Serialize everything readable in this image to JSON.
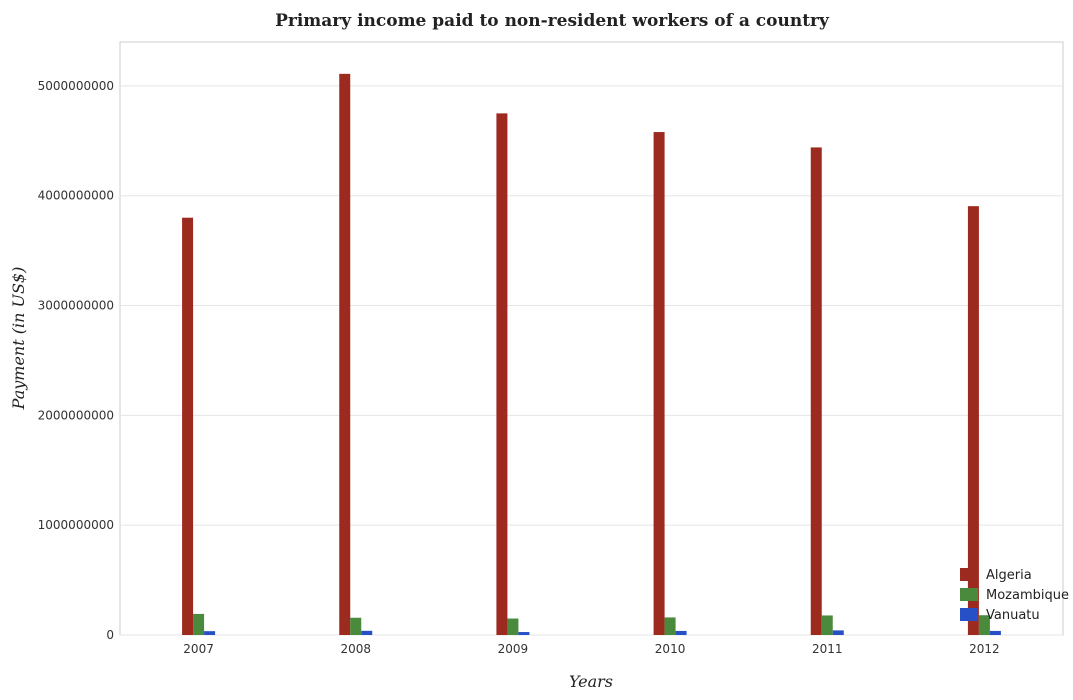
{
  "chart_data": {
    "type": "bar",
    "title": "Primary income paid to non-resident workers of a country",
    "xlabel": "Years",
    "ylabel": "Payment (in US$)",
    "categories": [
      "2007",
      "2008",
      "2009",
      "2010",
      "2011",
      "2012"
    ],
    "ylim": [
      0,
      5400000000
    ],
    "yticks": [
      0,
      1000000000,
      2000000000,
      3000000000,
      4000000000,
      5000000000
    ],
    "ytick_labels": [
      "0",
      "1000000000",
      "2000000000",
      "3000000000",
      "4000000000",
      "5000000000"
    ],
    "grid": true,
    "legend_position": "bottom-right",
    "series": [
      {
        "name": "Algeria",
        "color": "#9c2a1e",
        "values": [
          3800000000,
          5110000000,
          4750000000,
          4580000000,
          4440000000,
          3905000000
        ]
      },
      {
        "name": "Mozambique",
        "color": "#4a8a3c",
        "values": [
          192000000,
          157000000,
          150000000,
          160000000,
          178000000,
          180000000
        ]
      },
      {
        "name": "Vanuatu",
        "color": "#2750c6",
        "values": [
          35000000,
          38000000,
          27000000,
          37000000,
          42000000,
          37000000
        ]
      }
    ]
  }
}
